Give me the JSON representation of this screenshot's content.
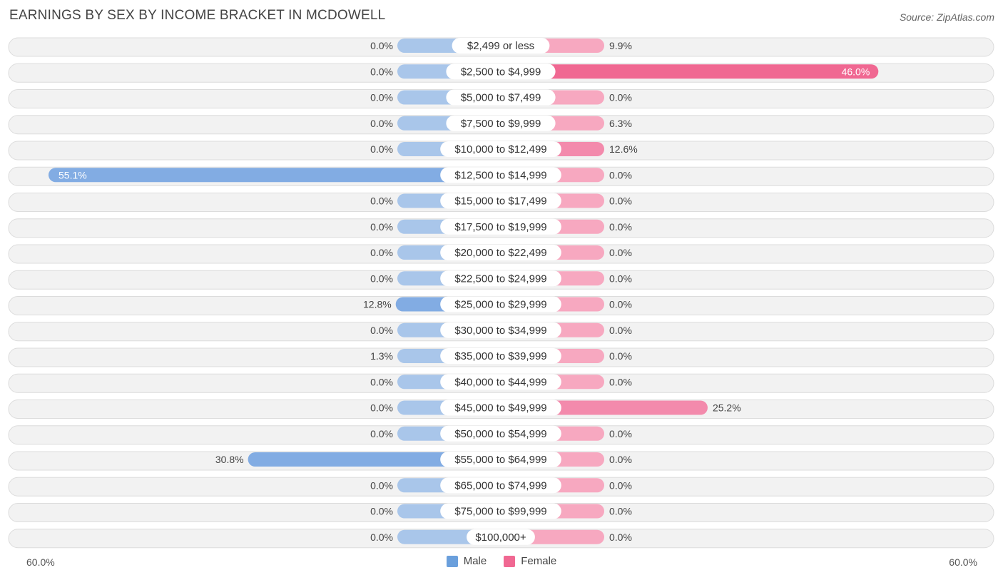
{
  "title": "EARNINGS BY SEX BY INCOME BRACKET IN MCDOWELL",
  "source": "Source: ZipAtlas.com",
  "colors": {
    "male_strong": "#6a9fdc",
    "male_light": "#a9c6ea",
    "female_strong": "#f06892",
    "female_light": "#f7a8c0",
    "row_bg": "#f2f2f2",
    "row_border": "#dcdcdc"
  },
  "legend": {
    "male": "Male",
    "female": "Female"
  },
  "axis": {
    "left_label": "60.0%",
    "right_label": "60.0%"
  },
  "chart_data": {
    "type": "bar",
    "orientation": "horizontal-diverging",
    "categories": [
      "$2,499 or less",
      "$2,500 to $4,999",
      "$5,000 to $7,499",
      "$7,500 to $9,999",
      "$10,000 to $12,499",
      "$12,500 to $14,999",
      "$15,000 to $17,499",
      "$17,500 to $19,999",
      "$20,000 to $22,499",
      "$22,500 to $24,999",
      "$25,000 to $29,999",
      "$30,000 to $34,999",
      "$35,000 to $39,999",
      "$40,000 to $44,999",
      "$45,000 to $49,999",
      "$50,000 to $54,999",
      "$55,000 to $64,999",
      "$65,000 to $74,999",
      "$75,000 to $99,999",
      "$100,000+"
    ],
    "series": [
      {
        "name": "Male",
        "values": [
          0.0,
          0.0,
          0.0,
          0.0,
          0.0,
          55.1,
          0.0,
          0.0,
          0.0,
          0.0,
          12.8,
          0.0,
          1.3,
          0.0,
          0.0,
          0.0,
          30.8,
          0.0,
          0.0,
          0.0
        ]
      },
      {
        "name": "Female",
        "values": [
          9.9,
          46.0,
          0.0,
          6.3,
          12.6,
          0.0,
          0.0,
          0.0,
          0.0,
          0.0,
          0.0,
          0.0,
          0.0,
          0.0,
          25.2,
          0.0,
          0.0,
          0.0,
          0.0,
          0.0
        ]
      }
    ],
    "value_labels": {
      "male": [
        "0.0%",
        "0.0%",
        "0.0%",
        "0.0%",
        "0.0%",
        "55.1%",
        "0.0%",
        "0.0%",
        "0.0%",
        "0.0%",
        "12.8%",
        "0.0%",
        "1.3%",
        "0.0%",
        "0.0%",
        "0.0%",
        "30.8%",
        "0.0%",
        "0.0%",
        "0.0%"
      ],
      "female": [
        "9.9%",
        "46.0%",
        "0.0%",
        "6.3%",
        "12.6%",
        "0.0%",
        "0.0%",
        "0.0%",
        "0.0%",
        "0.0%",
        "0.0%",
        "0.0%",
        "0.0%",
        "0.0%",
        "25.2%",
        "0.0%",
        "0.0%",
        "0.0%",
        "0.0%",
        "0.0%"
      ]
    },
    "xlim": [
      -60,
      60
    ],
    "title": "EARNINGS BY SEX BY INCOME BRACKET IN MCDOWELL",
    "legend_position": "bottom-center"
  }
}
